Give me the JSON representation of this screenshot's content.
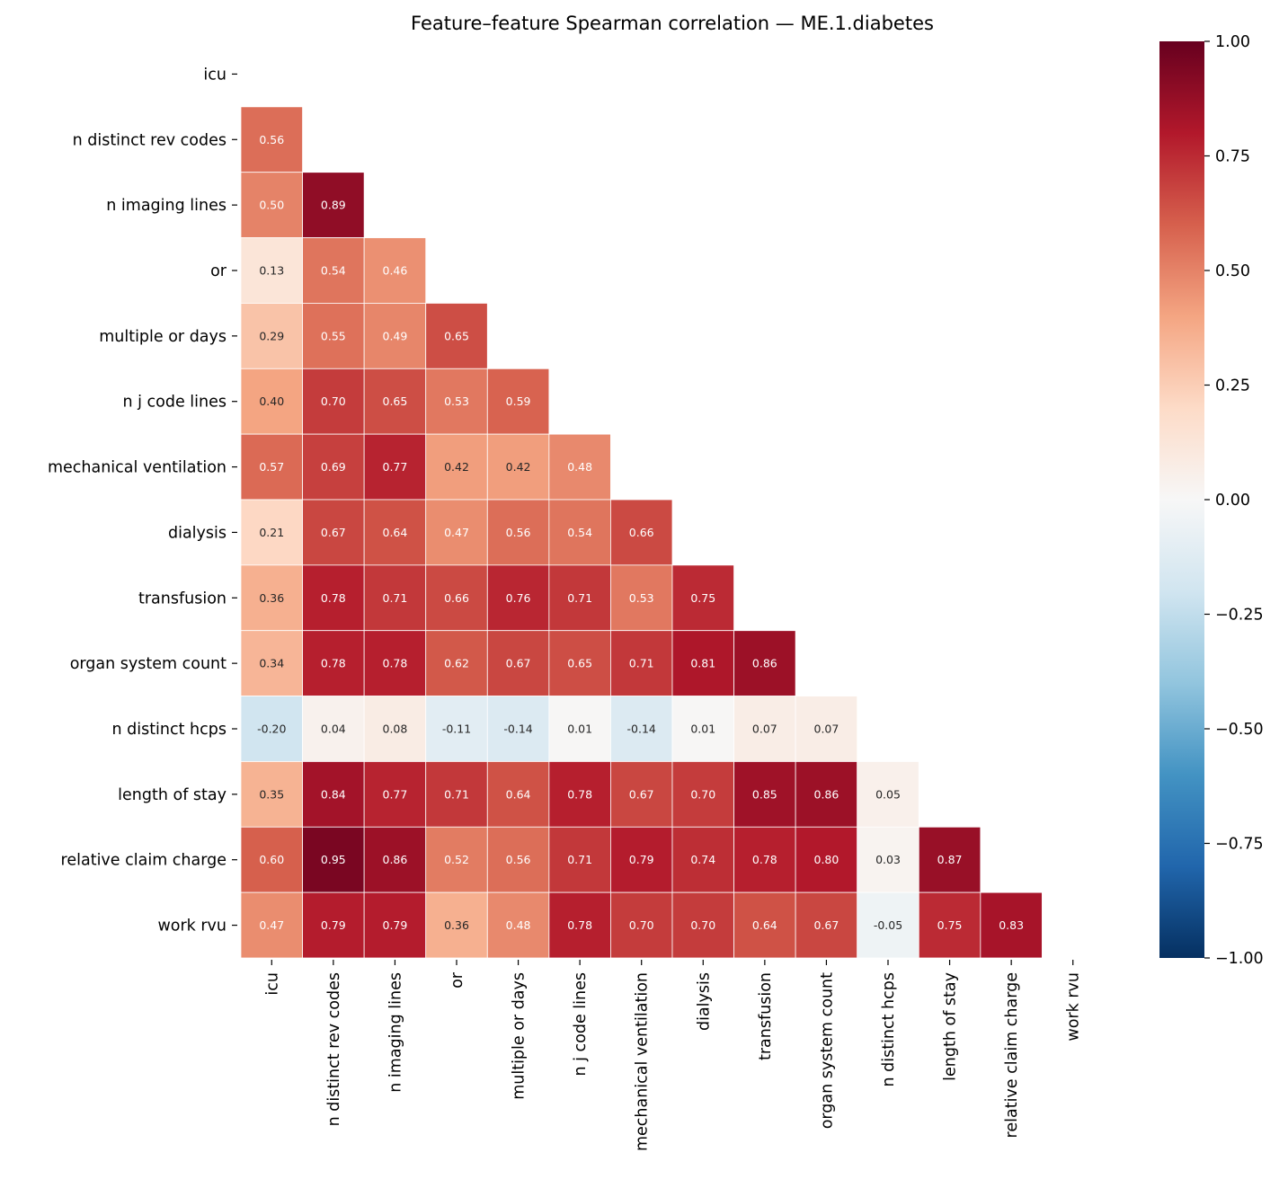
{
  "chart_data": {
    "type": "heatmap",
    "title": "Feature–feature Spearman correlation — ME.1.diabetes",
    "labels": [
      "icu",
      "n distinct rev codes",
      "n imaging lines",
      "or",
      "multiple or days",
      "n j code lines",
      "mechanical ventilation",
      "dialysis",
      "transfusion",
      "organ system count",
      "n distinct hcps",
      "length of stay",
      "relative claim charge",
      "work rvu"
    ],
    "mask": "upper triangle including diagonal",
    "lower_triangle": [
      [],
      [
        0.56
      ],
      [
        0.5,
        0.89
      ],
      [
        0.13,
        0.54,
        0.46
      ],
      [
        0.29,
        0.55,
        0.49,
        0.65
      ],
      [
        0.4,
        0.7,
        0.65,
        0.53,
        0.59
      ],
      [
        0.57,
        0.69,
        0.77,
        0.42,
        0.42,
        0.48
      ],
      [
        0.21,
        0.67,
        0.64,
        0.47,
        0.56,
        0.54,
        0.66
      ],
      [
        0.36,
        0.78,
        0.71,
        0.66,
        0.76,
        0.71,
        0.53,
        0.75
      ],
      [
        0.34,
        0.78,
        0.78,
        0.62,
        0.67,
        0.65,
        0.71,
        0.81,
        0.86
      ],
      [
        -0.2,
        0.04,
        0.08,
        -0.11,
        -0.14,
        0.01,
        -0.14,
        0.01,
        0.07,
        0.07
      ],
      [
        0.35,
        0.84,
        0.77,
        0.71,
        0.64,
        0.78,
        0.67,
        0.7,
        0.85,
        0.86,
        0.05
      ],
      [
        0.6,
        0.95,
        0.86,
        0.52,
        0.56,
        0.71,
        0.79,
        0.74,
        0.78,
        0.8,
        0.03,
        0.87
      ],
      [
        0.47,
        0.79,
        0.79,
        0.36,
        0.48,
        0.78,
        0.7,
        0.7,
        0.64,
        0.67,
        -0.05,
        0.75,
        0.83
      ]
    ],
    "colormap": "RdBu_r",
    "vlim": [
      -1,
      1
    ],
    "colorbar_ticks": [
      "1.00",
      "0.75",
      "0.50",
      "0.25",
      "0.00",
      "−0.25",
      "−0.50",
      "−0.75",
      "−1.00"
    ],
    "colorbar_tick_values": [
      1,
      0.75,
      0.5,
      0.25,
      0,
      -0.25,
      -0.5,
      -0.75,
      -1
    ],
    "annotation_format": "0.00",
    "colors": [
      "#053061",
      "#2166ac",
      "#4393c3",
      "#92c5de",
      "#d1e5f0",
      "#f7f7f7",
      "#fddbc7",
      "#f4a582",
      "#d6604d",
      "#b2182b",
      "#67001f"
    ]
  }
}
